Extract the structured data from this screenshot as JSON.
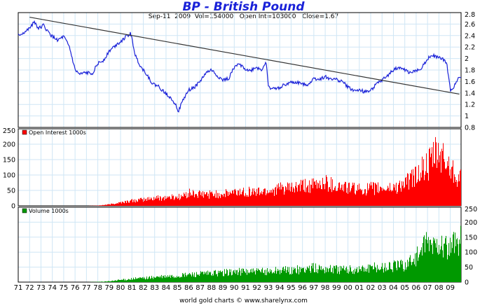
{
  "title": "BP  -  British Pound",
  "subtitle": {
    "date": "Sep-11  2009",
    "vol": "Vol=154000",
    "open_int": "Open Int=103000",
    "close": "Close=1.67"
  },
  "footer": "world gold charts © www.sharelynx.com",
  "colors": {
    "price": "#1a22d8",
    "open_interest": "#ff0000",
    "volume": "#009900",
    "trendline": "#333333",
    "grid": "#cfe6f5",
    "title": "#1a22d8"
  },
  "chart_data": [
    {
      "type": "line",
      "title": "BP  -  British Pound",
      "ylim": [
        0.8,
        2.8
      ],
      "yticks": [
        "2.8",
        "2.6",
        "2.4",
        "2.2",
        "2",
        "1.8",
        "1.6",
        "1.4",
        "1.2",
        "1",
        "0.8"
      ],
      "xticks": [
        "71",
        "72",
        "73",
        "74",
        "75",
        "76",
        "77",
        "78",
        "79",
        "80",
        "81",
        "82",
        "83",
        "84",
        "85",
        "86",
        "87",
        "88",
        "89",
        "90",
        "91",
        "92",
        "93",
        "94",
        "95",
        "96",
        "97",
        "98",
        "99",
        "00",
        "01",
        "02",
        "03",
        "04",
        "05",
        "06",
        "07",
        "08",
        "09"
      ],
      "grid": true,
      "series": [
        {
          "x": [
            1971.0,
            1971.5,
            1972.0,
            1972.4,
            1972.8,
            1973.2,
            1973.6,
            1974.0,
            1974.5,
            1975.0,
            1975.5,
            1976.0,
            1976.4,
            1976.9,
            1977.5,
            1978.0,
            1978.5,
            1979.0,
            1979.5,
            1980.0,
            1980.5,
            1980.9,
            1981.3,
            1981.8,
            1982.3,
            1982.8,
            1983.3,
            1983.8,
            1984.3,
            1984.8,
            1985.1,
            1985.5,
            1986.0,
            1986.5,
            1987.0,
            1987.5,
            1988.0,
            1988.5,
            1989.0,
            1989.5,
            1990.0,
            1990.5,
            1990.9,
            1991.4,
            1991.9,
            1992.4,
            1992.8,
            1993.0,
            1993.5,
            1994.0,
            1994.5,
            1995.0,
            1995.5,
            1996.0,
            1996.5,
            1997.0,
            1997.5,
            1998.0,
            1998.5,
            1999.0,
            1999.5,
            2000.0,
            2000.5,
            2001.0,
            2001.5,
            2002.0,
            2002.5,
            2003.0,
            2003.5,
            2004.0,
            2004.5,
            2005.0,
            2005.5,
            2006.0,
            2006.5,
            2007.0,
            2007.5,
            2007.9,
            2008.3,
            2008.7,
            2009.0,
            2009.3,
            2009.7
          ],
          "y": [
            2.4,
            2.45,
            2.52,
            2.65,
            2.52,
            2.58,
            2.47,
            2.38,
            2.32,
            2.38,
            2.2,
            1.8,
            1.72,
            1.75,
            1.74,
            1.91,
            1.97,
            2.13,
            2.22,
            2.3,
            2.38,
            2.44,
            2.05,
            1.85,
            1.73,
            1.56,
            1.52,
            1.42,
            1.34,
            1.22,
            1.08,
            1.28,
            1.45,
            1.5,
            1.6,
            1.75,
            1.8,
            1.7,
            1.62,
            1.65,
            1.85,
            1.9,
            1.83,
            1.78,
            1.85,
            1.8,
            1.95,
            1.5,
            1.47,
            1.5,
            1.55,
            1.58,
            1.58,
            1.56,
            1.55,
            1.65,
            1.64,
            1.68,
            1.65,
            1.63,
            1.6,
            1.5,
            1.44,
            1.45,
            1.42,
            1.45,
            1.55,
            1.62,
            1.7,
            1.8,
            1.85,
            1.8,
            1.75,
            1.78,
            1.85,
            2.0,
            2.05,
            2.02,
            2.0,
            1.9,
            1.45,
            1.5,
            1.67
          ]
        }
      ],
      "trendline": {
        "x": [
          1972.0,
          2009.8
        ],
        "y": [
          2.72,
          1.38
        ]
      }
    },
    {
      "type": "bar",
      "legend": "Open Interest 1000s",
      "ylim": [
        0,
        250
      ],
      "yticks": [
        "250",
        "200",
        "150",
        "100",
        "50",
        "0"
      ],
      "series": [
        {
          "name": "Open Interest 1000s",
          "x": [
            1975,
            1977,
            1978,
            1979,
            1980,
            1981,
            1982,
            1983,
            1984,
            1985,
            1985.5,
            1986,
            1987,
            1988,
            1989,
            1990,
            1991,
            1992,
            1993,
            1994,
            1995,
            1996,
            1997,
            1998,
            1999,
            2000,
            2001,
            2002,
            2003,
            2004,
            2005,
            2006,
            2006.5,
            2007,
            2007.5,
            2008,
            2008.5,
            2009,
            2009.7
          ],
          "y": [
            0,
            0,
            1,
            5,
            12,
            18,
            22,
            28,
            30,
            32,
            35,
            45,
            40,
            42,
            42,
            48,
            52,
            50,
            55,
            62,
            62,
            70,
            72,
            85,
            70,
            65,
            58,
            62,
            62,
            65,
            80,
            110,
            130,
            140,
            175,
            185,
            160,
            140,
            105
          ]
        }
      ]
    },
    {
      "type": "bar",
      "legend": "Volume 1000s",
      "ylim": [
        0,
        250
      ],
      "yticks": [
        "250",
        "200",
        "150",
        "100",
        "50",
        "0"
      ],
      "series": [
        {
          "name": "Volume 1000s",
          "x": [
            1975,
            1977,
            1978,
            1979,
            1980,
            1981,
            1982,
            1983,
            1984,
            1985,
            1986,
            1987,
            1988,
            1989,
            1990,
            1991,
            1992,
            1993,
            1994,
            1995,
            1996,
            1997,
            1998,
            1999,
            2000,
            2001,
            2002,
            2003,
            2004,
            2005,
            2006,
            2006.5,
            2007,
            2007.5,
            2008,
            2008.5,
            2009,
            2009.7
          ],
          "y": [
            0,
            0,
            1,
            3,
            8,
            12,
            15,
            18,
            20,
            22,
            28,
            30,
            32,
            35,
            38,
            40,
            38,
            40,
            45,
            42,
            48,
            52,
            50,
            48,
            45,
            48,
            52,
            55,
            60,
            65,
            95,
            120,
            140,
            135,
            150,
            130,
            120,
            160
          ]
        }
      ]
    }
  ]
}
